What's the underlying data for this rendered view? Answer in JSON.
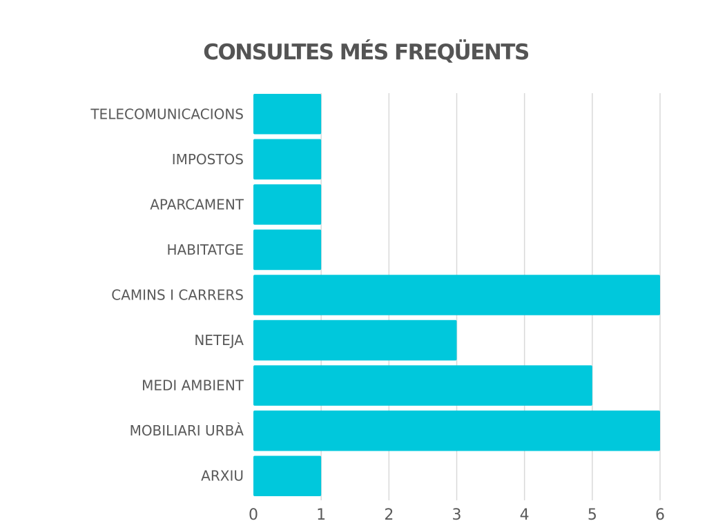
{
  "chart_data": {
    "type": "bar",
    "orientation": "horizontal",
    "title": "CONSULTES MÉS FREQÜENTS",
    "xlabel": "",
    "ylabel": "",
    "categories": [
      "TELECOMUNICACIONS",
      "IMPOSTOS",
      "APARCAMENT",
      "HABITATGE",
      "CAMINS I CARRERS",
      "NETEJA",
      "MEDI AMBIENT",
      "MOBILIARI URBÀ",
      "ARXIU"
    ],
    "values": [
      1,
      1,
      1,
      1,
      6,
      3,
      5,
      6,
      1
    ],
    "xlim": [
      0,
      6
    ],
    "ticks": [
      "0",
      "1",
      "2",
      "3",
      "4",
      "5",
      "6"
    ],
    "grid": "vertical",
    "legend": "none",
    "colors": {
      "bar": "#00c8dc",
      "grid": "#d9d9d9",
      "text": "#595959",
      "title": "#545454"
    }
  }
}
